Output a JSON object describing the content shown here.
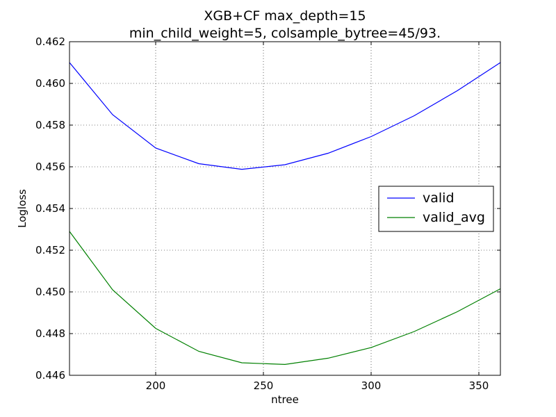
{
  "chart_data": {
    "type": "line",
    "title_line1": "XGB+CF max_depth=15",
    "title_line2": "min_child_weight=5, colsample_bytree=45/93.",
    "xlabel": "ntree",
    "ylabel": "Logloss",
    "xlim": [
      160,
      360
    ],
    "ylim": [
      0.446,
      0.462
    ],
    "xticks": [
      200,
      250,
      300,
      350
    ],
    "yticks": [
      "0.446",
      "0.448",
      "0.450",
      "0.452",
      "0.454",
      "0.456",
      "0.458",
      "0.460",
      "0.462"
    ],
    "grid": true,
    "legend_position": "center-right",
    "x": [
      160,
      180,
      200,
      220,
      240,
      260,
      280,
      300,
      320,
      340,
      360
    ],
    "series": [
      {
        "name": "valid",
        "color": "#0000ff",
        "values": [
          0.461,
          0.4585,
          0.4569,
          0.45615,
          0.45588,
          0.4561,
          0.45665,
          0.45745,
          0.45845,
          0.45965,
          0.461
        ]
      },
      {
        "name": "valid_avg",
        "color": "#008000",
        "values": [
          0.4529,
          0.4501,
          0.44825,
          0.44715,
          0.4466,
          0.44652,
          0.44682,
          0.44733,
          0.4481,
          0.44905,
          0.45015
        ]
      }
    ]
  }
}
